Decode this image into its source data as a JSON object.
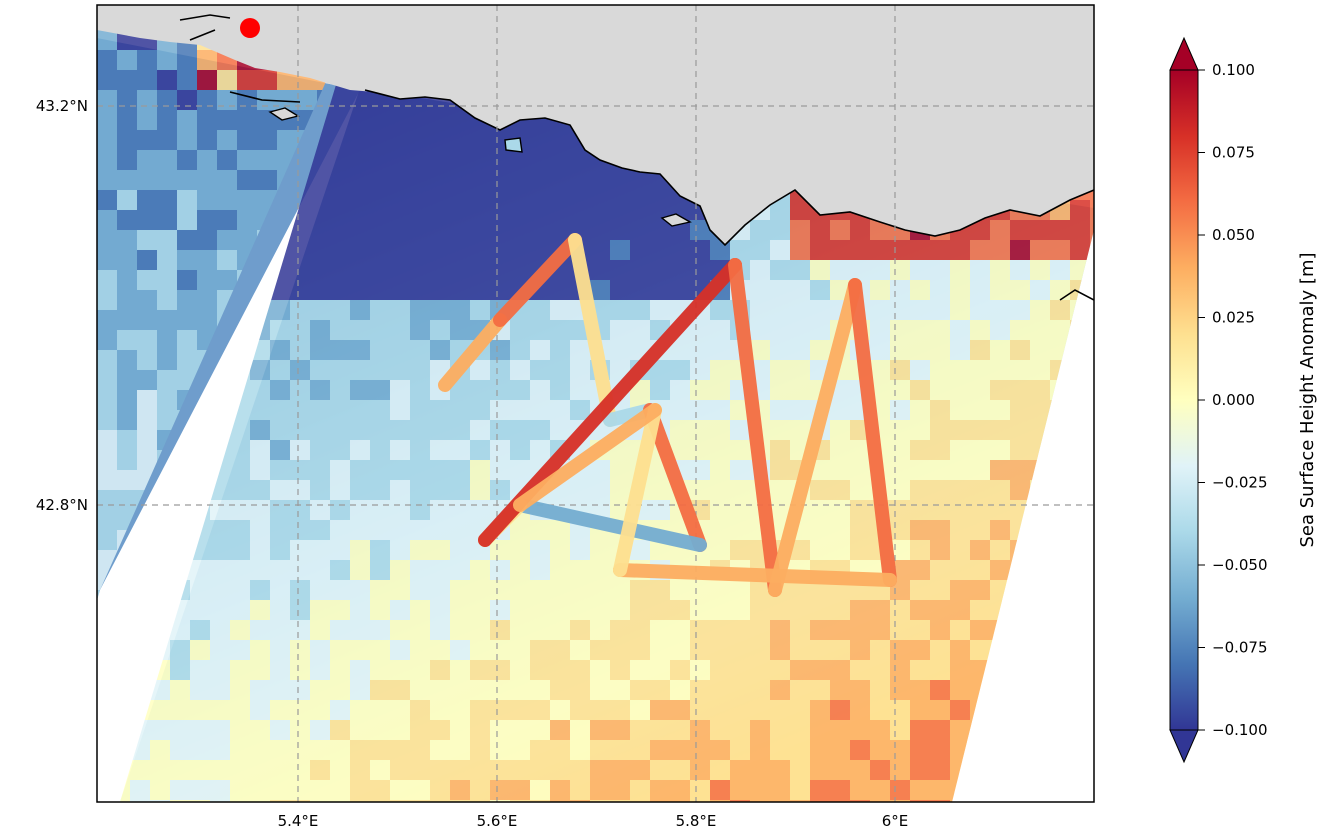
{
  "map": {
    "x_ticks": [
      "5.4°E",
      "5.6°E",
      "5.8°E",
      "6°E"
    ],
    "y_ticks": [
      "43.2°N",
      "42.8°N"
    ],
    "colors": {
      "land": "#d9d9d9",
      "ocean": "#ffffff",
      "coastline": "#000000",
      "gridline": "#9a9a9a",
      "marker": "#ff0000"
    },
    "colormap": "RdYlBu_r",
    "gridlines": true,
    "marker": "red circle"
  },
  "colorbar": {
    "label": "Sea Surface Height Anomaly [m]",
    "ticks": [
      "0.100",
      "0.075",
      "0.050",
      "0.025",
      "0.000",
      "−0.025",
      "−0.050",
      "−0.075",
      "−0.100"
    ],
    "range": [
      -0.1,
      0.1
    ],
    "extend": "both"
  }
}
